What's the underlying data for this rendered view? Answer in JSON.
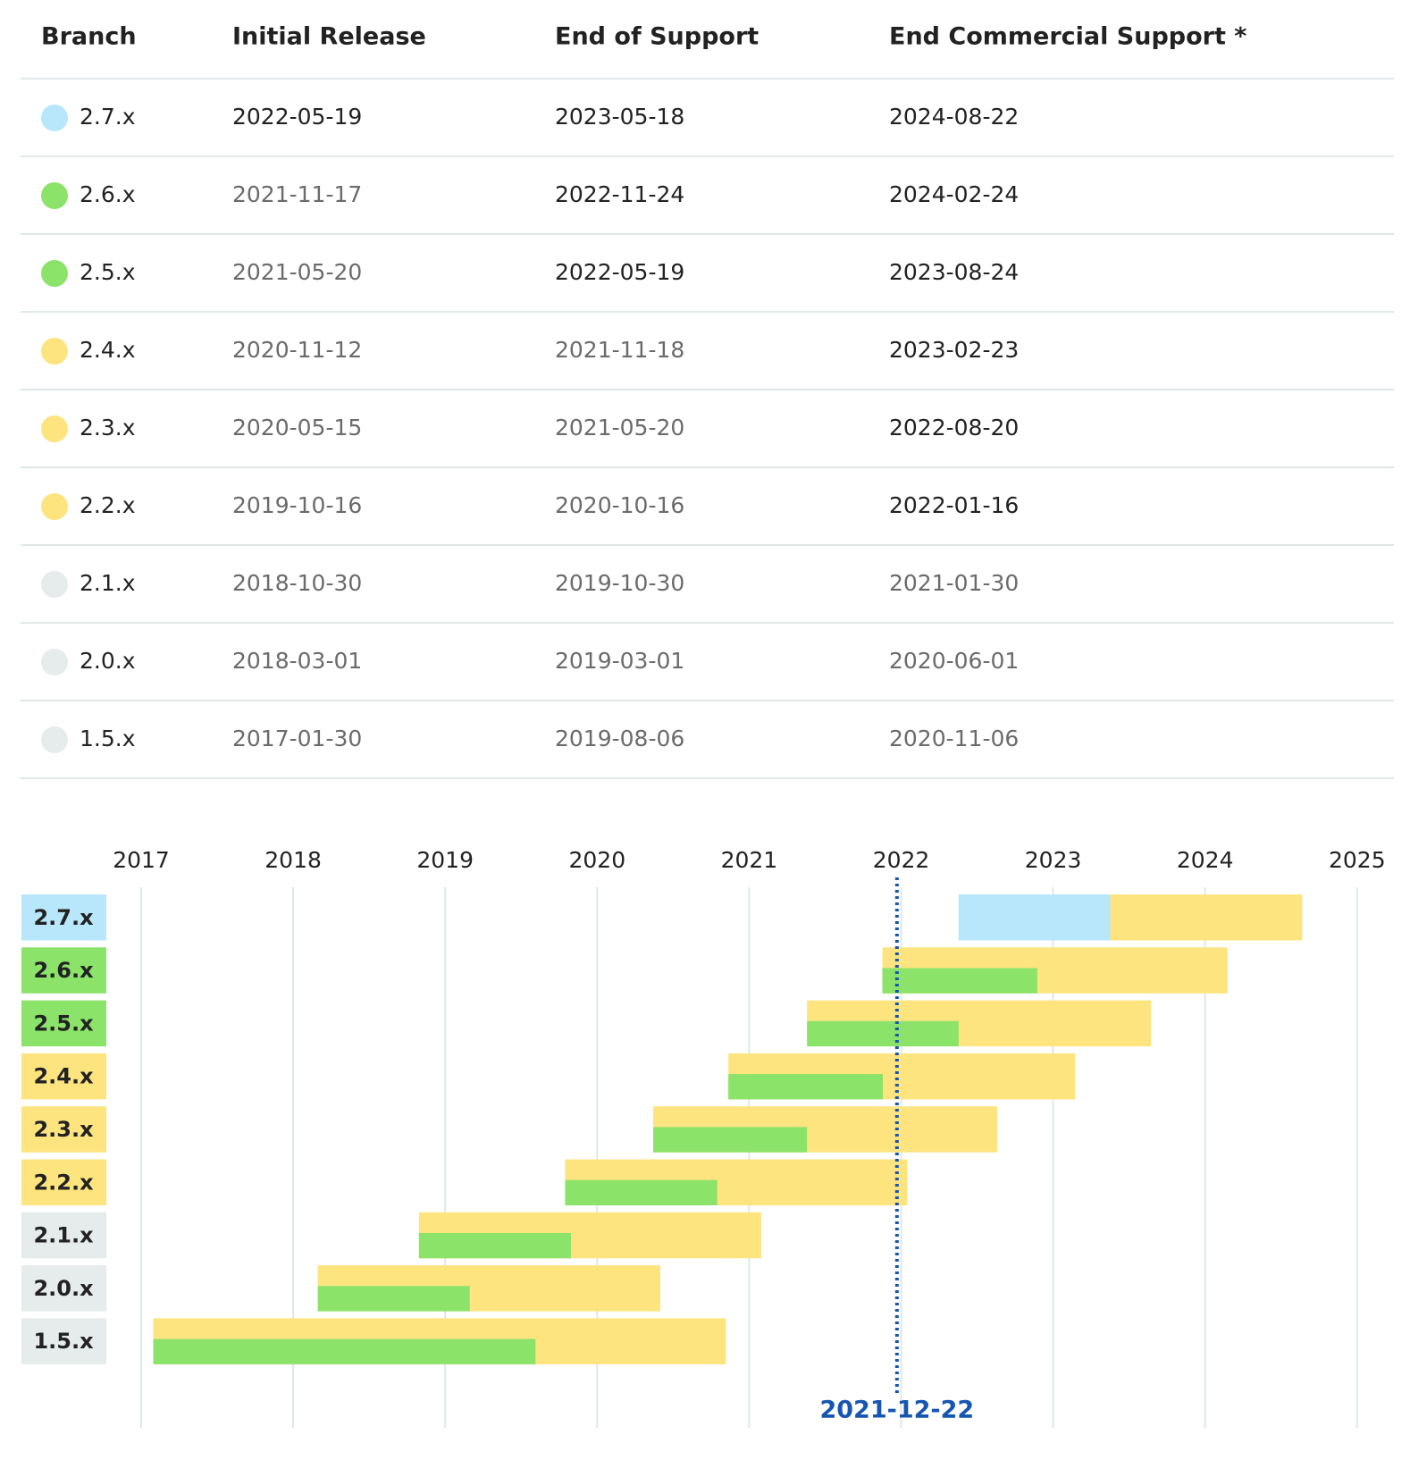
{
  "table": {
    "headers": [
      "Branch",
      "Initial Release",
      "End of Support",
      "End Commercial Support *"
    ],
    "rows": [
      {
        "branch": "2.7.x",
        "initial": "2022-05-19",
        "support_end": "2023-05-18",
        "commercial_end": "2024-08-22",
        "color": "#b8e7fc"
      },
      {
        "branch": "2.6.x",
        "initial": "2021-11-17",
        "support_end": "2022-11-24",
        "commercial_end": "2024-02-24",
        "color": "#8be36a"
      },
      {
        "branch": "2.5.x",
        "initial": "2021-05-20",
        "support_end": "2022-05-19",
        "commercial_end": "2023-08-24",
        "color": "#8be36a"
      },
      {
        "branch": "2.4.x",
        "initial": "2020-11-12",
        "support_end": "2021-11-18",
        "commercial_end": "2023-02-23",
        "color": "#fde47f"
      },
      {
        "branch": "2.3.x",
        "initial": "2020-05-15",
        "support_end": "2021-05-20",
        "commercial_end": "2022-08-20",
        "color": "#fde47f"
      },
      {
        "branch": "2.2.x",
        "initial": "2019-10-16",
        "support_end": "2020-10-16",
        "commercial_end": "2022-01-16",
        "color": "#fde47f"
      },
      {
        "branch": "2.1.x",
        "initial": "2018-10-30",
        "support_end": "2019-10-30",
        "commercial_end": "2021-01-30",
        "color": "#e6ecec"
      },
      {
        "branch": "2.0.x",
        "initial": "2018-03-01",
        "support_end": "2019-03-01",
        "commercial_end": "2020-06-01",
        "color": "#e6ecec"
      },
      {
        "branch": "1.5.x",
        "initial": "2017-01-30",
        "support_end": "2019-08-06",
        "commercial_end": "2020-11-06",
        "color": "#e6ecec"
      }
    ]
  },
  "chart": {
    "years": [
      "2017",
      "2018",
      "2019",
      "2020",
      "2021",
      "2022",
      "2023",
      "2024",
      "2025"
    ],
    "today": "2021-12-22",
    "support_color": "#8be36a",
    "commercial_color": "#fde47f"
  }
}
